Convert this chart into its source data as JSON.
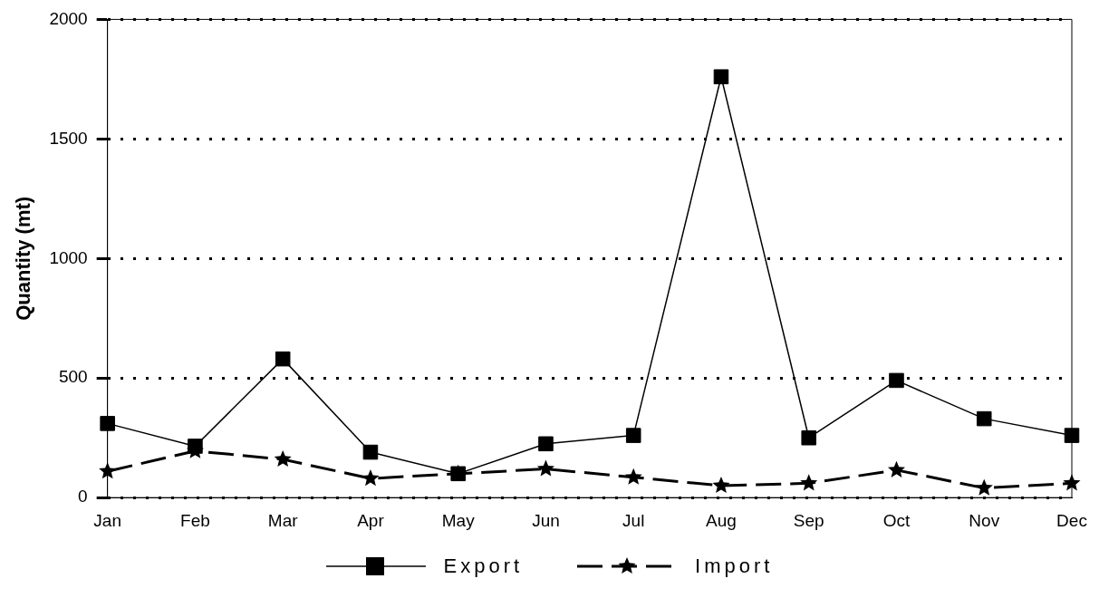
{
  "chart_data": {
    "type": "line",
    "ylabel": "Quantity (mt)",
    "categories": [
      "Jan",
      "Feb",
      "Mar",
      "Apr",
      "May",
      "Jun",
      "Jul",
      "Aug",
      "Sep",
      "Oct",
      "Nov",
      "Dec"
    ],
    "series": [
      {
        "name": "Export",
        "color": "#000000",
        "marker": "square",
        "line_style": "solid",
        "values": [
          310,
          215,
          580,
          190,
          100,
          225,
          260,
          1760,
          250,
          490,
          330,
          260
        ]
      },
      {
        "name": "Import",
        "color": "#000000",
        "marker": "star",
        "line_style": "dashed",
        "values": [
          110,
          195,
          160,
          80,
          100,
          120,
          85,
          50,
          60,
          115,
          40,
          60
        ]
      }
    ],
    "ylim": [
      0,
      2000
    ],
    "yticks": [
      0,
      500,
      1000,
      1500,
      2000
    ],
    "grid": "y",
    "legend": "bottom"
  }
}
